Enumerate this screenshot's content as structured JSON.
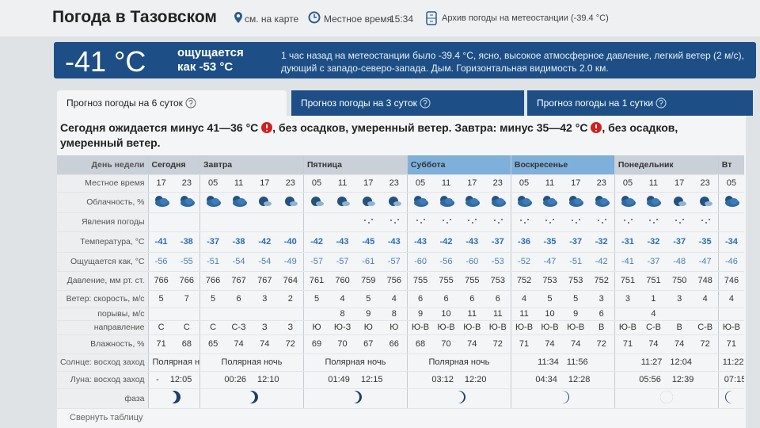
{
  "header": {
    "title": "Погода в Тазовском",
    "map_link": "см. на карте",
    "local_time_label": "Местное время",
    "local_time": "15:34",
    "archive": "Архив погоды на метеостанции (-39.4 °C)"
  },
  "current": {
    "temp": "-41 °C",
    "feels_label": "ощущается",
    "feels_value": "как -53 °C",
    "description": "1 час назад на метеостанции было -39.4 °C, ясно, высокое атмосферное давление, легкий ветер (2 м/с), дующий с западо-северо-запада. Дым. Горизонтальная видимость 2.0 км."
  },
  "tabs": [
    "Прогноз погоды на 6 суток",
    "Прогноз погоды на 3 суток",
    "Прогноз погоды на 1 сутки"
  ],
  "summary": [
    "Сегодня ожидается минус 41—36 °C",
    ", без осадков, умеренный ветер. Завтра: минус 35—42 °C",
    ", без осадков, умеренный ветер."
  ],
  "table": {
    "row_labels": [
      "День недели",
      "Местное время",
      "Облачность, %",
      "Явления погоды",
      "Температура, °C",
      "Ощущается как, °C",
      "Давление, мм рт. ст.",
      "Ветер: скорость, м/с",
      "порывы, м/с",
      "направление",
      "Влажность, %",
      "Солнце: восход заход",
      "Луна: восход заход",
      "фаза"
    ],
    "days": [
      {
        "name": "Сегодня",
        "times": [
          "17",
          "23"
        ],
        "sun": [
          "Полярная ночь"
        ],
        "moon": [
          "-",
          "12:05"
        ]
      },
      {
        "name": "Завтра",
        "times": [
          "05",
          "11",
          "17",
          "23"
        ],
        "sun": [
          "Полярная ночь"
        ],
        "moon": [
          "00:26",
          "12:10"
        ]
      },
      {
        "name": "Пятница",
        "times": [
          "05",
          "11",
          "17",
          "23"
        ],
        "sun": [
          "Полярная ночь"
        ],
        "moon": [
          "01:49",
          "12:15"
        ]
      },
      {
        "name": "Суббота",
        "times": [
          "05",
          "11",
          "17",
          "23"
        ],
        "sun": [
          "Полярная ночь"
        ],
        "moon": [
          "03:12",
          "12:20"
        ]
      },
      {
        "name": "Воскресенье",
        "times": [
          "05",
          "11",
          "17",
          "23"
        ],
        "sun": [
          "11:34",
          "11:56"
        ],
        "moon": [
          "04:34",
          "12:28"
        ]
      },
      {
        "name": "Понедельник",
        "times": [
          "05",
          "11",
          "17",
          "23"
        ],
        "sun": [
          "11:27",
          "12:04"
        ],
        "moon": [
          "05:56",
          "12:39"
        ]
      },
      {
        "name": "Вт",
        "times": [
          "05"
        ],
        "sun": [
          "11:22"
        ],
        "moon": [
          "07:15"
        ]
      }
    ],
    "rows": {
      "temperature": [
        -41,
        -38,
        -37,
        -38,
        -42,
        -40,
        -42,
        -43,
        -45,
        -43,
        -43,
        -42,
        -43,
        -37,
        -36,
        -35,
        -37,
        -32,
        -31,
        -32,
        -37,
        -35,
        -34
      ],
      "feels": [
        -56,
        -55,
        -51,
        -54,
        -54,
        -49,
        -57,
        -57,
        -61,
        -57,
        -60,
        -56,
        -60,
        -53,
        -52,
        -47,
        -51,
        -42,
        -41,
        -37,
        -48,
        -47,
        -46
      ],
      "pressure": [
        766,
        766,
        766,
        767,
        767,
        764,
        761,
        760,
        759,
        756,
        755,
        755,
        755,
        753,
        752,
        753,
        753,
        752,
        751,
        751,
        750,
        748,
        746
      ],
      "wind_speed": [
        5,
        7,
        5,
        6,
        3,
        2,
        5,
        4,
        5,
        4,
        6,
        6,
        6,
        6,
        4,
        5,
        5,
        3,
        3,
        1,
        3,
        4,
        4
      ],
      "gusts": [
        null,
        null,
        null,
        null,
        null,
        null,
        null,
        8,
        9,
        8,
        9,
        10,
        11,
        11,
        11,
        10,
        9,
        6,
        null,
        4,
        null,
        null,
        null
      ],
      "direction": [
        "С",
        "С",
        "С",
        "С-З",
        "З",
        "З",
        "Ю",
        "Ю-З",
        "Ю",
        "Ю",
        "Ю-В",
        "Ю-В",
        "Ю-В",
        "Ю-В",
        "Ю-В",
        "Ю-В",
        "Ю-В",
        "В",
        "Ю-В",
        "С-В",
        "В",
        "С-В",
        "Ю-В"
      ],
      "humidity": [
        71,
        68,
        65,
        74,
        74,
        72,
        69,
        70,
        67,
        66,
        68,
        70,
        74,
        72,
        71,
        74,
        74,
        72,
        71,
        74,
        74,
        72,
        71
      ]
    },
    "collapse": "Свернуть таблицу"
  }
}
